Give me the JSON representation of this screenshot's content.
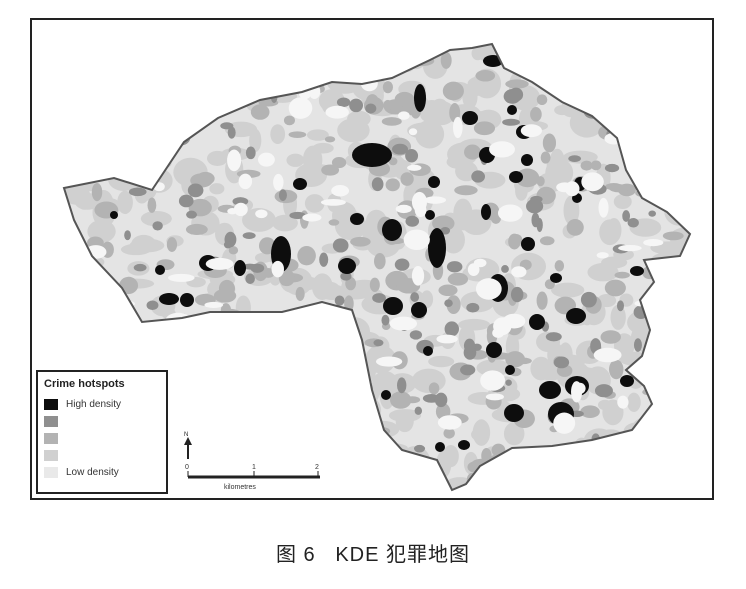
{
  "legend": {
    "title": "Crime hotspots",
    "items": [
      {
        "label": "High density",
        "color": "#0d0d0d"
      },
      {
        "label": "",
        "color": "#8f8f8f"
      },
      {
        "label": "",
        "color": "#b3b3b3"
      },
      {
        "label": "",
        "color": "#d0d0d0"
      },
      {
        "label": "Low density",
        "color": "#e9e9e9"
      }
    ]
  },
  "scale": {
    "north": "N",
    "ticks": [
      "0",
      "1",
      "2"
    ],
    "unit": "kilometres"
  },
  "caption": {
    "figure_number": "图 6",
    "title": "KDE 犯罪地图"
  },
  "colors": {
    "high": "#0d0d0d",
    "mid": "#8f8f8f",
    "lowmid": "#b3b3b3",
    "low": "#d0d0d0",
    "base": "#e9e9e9",
    "boundary": "#555555"
  }
}
